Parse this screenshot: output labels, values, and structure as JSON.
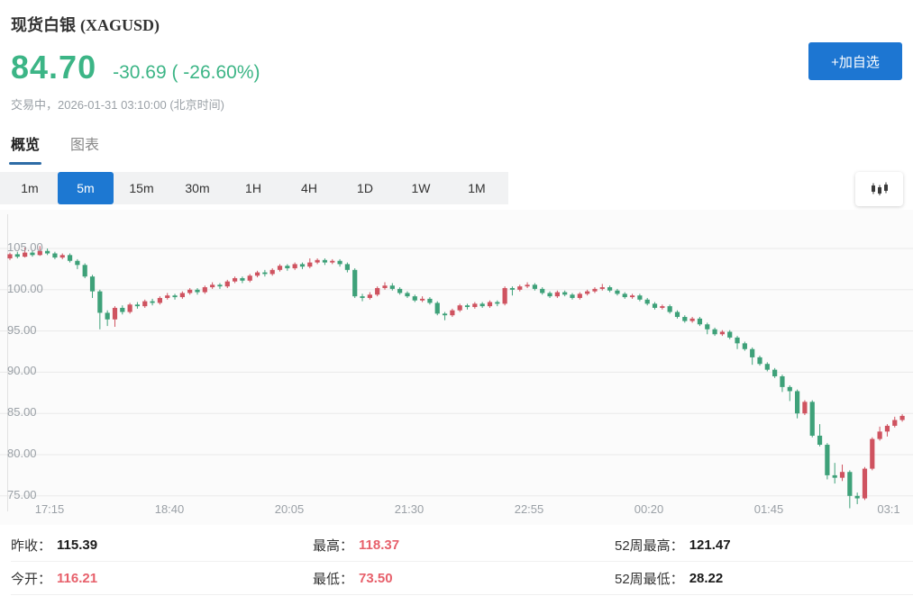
{
  "header": {
    "title": "现货白银",
    "symbol": "(XAGUSD)",
    "price": "84.70",
    "change_value": "-30.69",
    "change_percent": "( -26.60%)",
    "status": "交易中，2026-01-31 03:10:00 (北京时间)",
    "watchlist_button": "+加自选"
  },
  "tabs": [
    {
      "label": "概览",
      "active": true
    },
    {
      "label": "图表",
      "active": false
    }
  ],
  "timeframes": {
    "options": [
      "1m",
      "5m",
      "15m",
      "30m",
      "1H",
      "4H",
      "1D",
      "1W",
      "1M"
    ],
    "active": "5m"
  },
  "chart_data": {
    "type": "candlestick",
    "symbol": "XAGUSD",
    "interval": "5m",
    "up_color": "#cf5360",
    "down_color": "#3ea179",
    "grid": true,
    "y_ticks": [
      105,
      100,
      95,
      90,
      85,
      80,
      75
    ],
    "y_tick_labels": [
      "105.00",
      "100.00",
      "95.00",
      "90.00",
      "85.00",
      "80.00",
      "75.00"
    ],
    "x_labels": [
      "17:15",
      "18:40",
      "20:05",
      "21:30",
      "22:55",
      "00:20",
      "01:45",
      "03:1"
    ],
    "ylim": [
      73.0,
      106.5
    ],
    "candles_ohlc": [
      [
        103.8,
        104.5,
        103.6,
        104.3
      ],
      [
        104.3,
        104.6,
        103.8,
        104.0
      ],
      [
        104.0,
        105.1,
        103.9,
        104.5
      ],
      [
        104.5,
        104.8,
        104.0,
        104.2
      ],
      [
        104.2,
        105.3,
        104.1,
        104.7
      ],
      [
        104.7,
        105.0,
        104.2,
        104.4
      ],
      [
        104.4,
        104.6,
        103.7,
        103.9
      ],
      [
        103.9,
        104.4,
        103.7,
        104.2
      ],
      [
        104.2,
        104.4,
        103.3,
        103.5
      ],
      [
        103.5,
        103.7,
        102.5,
        103.0
      ],
      [
        103.0,
        103.2,
        101.4,
        101.6
      ],
      [
        101.6,
        101.8,
        99.0,
        99.8
      ],
      [
        99.8,
        100.0,
        95.2,
        97.2
      ],
      [
        97.2,
        97.5,
        95.6,
        96.4
      ],
      [
        96.4,
        98.0,
        95.5,
        97.8
      ],
      [
        97.8,
        98.1,
        97.0,
        97.3
      ],
      [
        97.3,
        98.4,
        97.1,
        98.2
      ],
      [
        98.2,
        98.5,
        97.7,
        98.0
      ],
      [
        98.0,
        98.8,
        97.8,
        98.6
      ],
      [
        98.6,
        98.9,
        98.1,
        98.4
      ],
      [
        98.4,
        99.2,
        98.2,
        99.0
      ],
      [
        99.0,
        99.6,
        98.8,
        99.3
      ],
      [
        99.3,
        99.5,
        98.8,
        99.1
      ],
      [
        99.1,
        99.8,
        98.9,
        99.6
      ],
      [
        99.6,
        100.2,
        99.4,
        100.0
      ],
      [
        100.0,
        100.2,
        99.4,
        99.7
      ],
      [
        99.7,
        100.5,
        99.5,
        100.3
      ],
      [
        100.3,
        100.9,
        100.1,
        100.6
      ],
      [
        100.6,
        100.8,
        100.1,
        100.4
      ],
      [
        100.4,
        101.2,
        100.2,
        101.0
      ],
      [
        101.0,
        101.6,
        100.8,
        101.4
      ],
      [
        101.4,
        101.6,
        100.8,
        101.1
      ],
      [
        101.1,
        101.9,
        100.9,
        101.7
      ],
      [
        101.7,
        102.3,
        101.5,
        102.1
      ],
      [
        102.1,
        102.4,
        101.6,
        101.9
      ],
      [
        101.9,
        102.6,
        101.7,
        102.4
      ],
      [
        102.4,
        103.1,
        102.2,
        102.9
      ],
      [
        102.9,
        103.1,
        102.3,
        102.6
      ],
      [
        102.6,
        103.3,
        102.4,
        103.1
      ],
      [
        103.1,
        103.3,
        102.5,
        102.8
      ],
      [
        102.8,
        103.8,
        102.6,
        103.3
      ],
      [
        103.3,
        103.8,
        103.1,
        103.6
      ],
      [
        103.6,
        103.8,
        103.0,
        103.3
      ],
      [
        103.3,
        103.7,
        103.1,
        103.5
      ],
      [
        103.5,
        103.7,
        102.8,
        103.1
      ],
      [
        103.1,
        103.3,
        102.1,
        102.4
      ],
      [
        102.4,
        102.6,
        99.0,
        99.2
      ],
      [
        99.2,
        99.5,
        98.6,
        99.0
      ],
      [
        99.0,
        99.7,
        98.8,
        99.4
      ],
      [
        99.4,
        100.4,
        99.2,
        100.2
      ],
      [
        100.2,
        100.9,
        100.0,
        100.5
      ],
      [
        100.5,
        100.8,
        99.9,
        100.1
      ],
      [
        100.1,
        100.3,
        99.4,
        99.6
      ],
      [
        99.6,
        99.8,
        99.0,
        99.2
      ],
      [
        99.2,
        99.4,
        98.5,
        98.7
      ],
      [
        98.7,
        99.2,
        98.5,
        98.9
      ],
      [
        98.9,
        99.1,
        98.2,
        98.4
      ],
      [
        98.4,
        98.6,
        96.9,
        97.1
      ],
      [
        97.1,
        97.3,
        96.3,
        96.9
      ],
      [
        96.9,
        97.7,
        96.7,
        97.5
      ],
      [
        97.5,
        98.3,
        97.3,
        98.1
      ],
      [
        98.1,
        98.3,
        97.6,
        97.9
      ],
      [
        97.9,
        98.5,
        97.7,
        98.3
      ],
      [
        98.3,
        98.5,
        97.8,
        98.0
      ],
      [
        98.0,
        98.7,
        97.8,
        98.5
      ],
      [
        98.5,
        98.7,
        98.0,
        98.3
      ],
      [
        98.3,
        100.4,
        98.1,
        100.2
      ],
      [
        100.2,
        100.4,
        99.3,
        100.0
      ],
      [
        100.0,
        100.6,
        99.8,
        100.4
      ],
      [
        100.4,
        100.9,
        100.2,
        100.6
      ],
      [
        100.6,
        100.8,
        99.9,
        100.1
      ],
      [
        100.1,
        100.3,
        99.4,
        99.6
      ],
      [
        99.6,
        99.8,
        99.0,
        99.2
      ],
      [
        99.2,
        99.9,
        99.0,
        99.7
      ],
      [
        99.7,
        99.9,
        99.2,
        99.4
      ],
      [
        99.4,
        99.6,
        98.8,
        99.0
      ],
      [
        99.0,
        99.7,
        98.8,
        99.5
      ],
      [
        99.5,
        100.0,
        99.3,
        99.8
      ],
      [
        99.8,
        100.3,
        99.6,
        100.1
      ],
      [
        100.1,
        100.7,
        99.9,
        100.3
      ],
      [
        100.3,
        100.5,
        99.7,
        99.9
      ],
      [
        99.9,
        100.1,
        99.3,
        99.5
      ],
      [
        99.5,
        99.7,
        98.9,
        99.1
      ],
      [
        99.1,
        99.5,
        98.9,
        99.3
      ],
      [
        99.3,
        99.5,
        98.6,
        98.8
      ],
      [
        98.8,
        99.0,
        98.1,
        98.3
      ],
      [
        98.3,
        98.5,
        97.6,
        97.8
      ],
      [
        97.8,
        98.2,
        97.6,
        98.0
      ],
      [
        98.0,
        98.2,
        97.1,
        97.3
      ],
      [
        97.3,
        97.5,
        96.5,
        96.7
      ],
      [
        96.7,
        96.9,
        96.0,
        96.2
      ],
      [
        96.2,
        96.7,
        96.0,
        96.5
      ],
      [
        96.5,
        96.7,
        95.6,
        95.8
      ],
      [
        95.8,
        96.0,
        94.6,
        95.2
      ],
      [
        95.2,
        95.4,
        94.4,
        94.6
      ],
      [
        94.6,
        95.1,
        94.4,
        94.9
      ],
      [
        94.9,
        95.1,
        94.0,
        94.2
      ],
      [
        94.2,
        94.4,
        92.8,
        93.5
      ],
      [
        93.5,
        93.7,
        92.6,
        92.8
      ],
      [
        92.8,
        93.0,
        90.9,
        91.8
      ],
      [
        91.8,
        92.0,
        90.8,
        91.0
      ],
      [
        91.0,
        91.2,
        90.1,
        90.3
      ],
      [
        90.3,
        90.5,
        89.3,
        89.5
      ],
      [
        89.5,
        89.7,
        87.6,
        88.2
      ],
      [
        88.2,
        88.4,
        86.5,
        87.7
      ],
      [
        87.7,
        87.9,
        84.4,
        85.0
      ],
      [
        85.0,
        86.6,
        84.8,
        86.4
      ],
      [
        86.4,
        86.6,
        82.1,
        82.3
      ],
      [
        82.3,
        83.7,
        81.0,
        81.2
      ],
      [
        81.2,
        81.4,
        77.0,
        77.5
      ],
      [
        77.5,
        79.0,
        76.5,
        77.2
      ],
      [
        77.2,
        78.8,
        76.8,
        77.9
      ],
      [
        77.9,
        78.1,
        73.5,
        75.0
      ],
      [
        75.0,
        75.4,
        74.0,
        74.7
      ],
      [
        74.7,
        78.5,
        74.5,
        78.3
      ],
      [
        78.3,
        82.1,
        78.1,
        81.9
      ],
      [
        81.9,
        83.4,
        81.7,
        82.8
      ],
      [
        82.8,
        83.7,
        82.2,
        83.5
      ],
      [
        83.5,
        84.6,
        83.3,
        84.2
      ],
      [
        84.2,
        84.9,
        84.0,
        84.7
      ]
    ]
  },
  "stats": [
    {
      "label": "昨收：",
      "value": "115.39",
      "color": "dark"
    },
    {
      "label": "最高：",
      "value": "118.37",
      "color": "red"
    },
    {
      "label": "52周最高：",
      "value": "121.47",
      "color": "dark"
    },
    {
      "label": "今开：",
      "value": "116.21",
      "color": "red"
    },
    {
      "label": "最低：",
      "value": "73.50",
      "color": "red"
    },
    {
      "label": "52周最低：",
      "value": "28.22",
      "color": "dark"
    }
  ],
  "colors": {
    "price_green": "#3cb586",
    "stat_red": "#e7606b",
    "accent_blue": "#1d76d2",
    "tab_underline": "#2e6ca6",
    "candle_up": "#cf5360",
    "candle_down": "#3ea179"
  }
}
